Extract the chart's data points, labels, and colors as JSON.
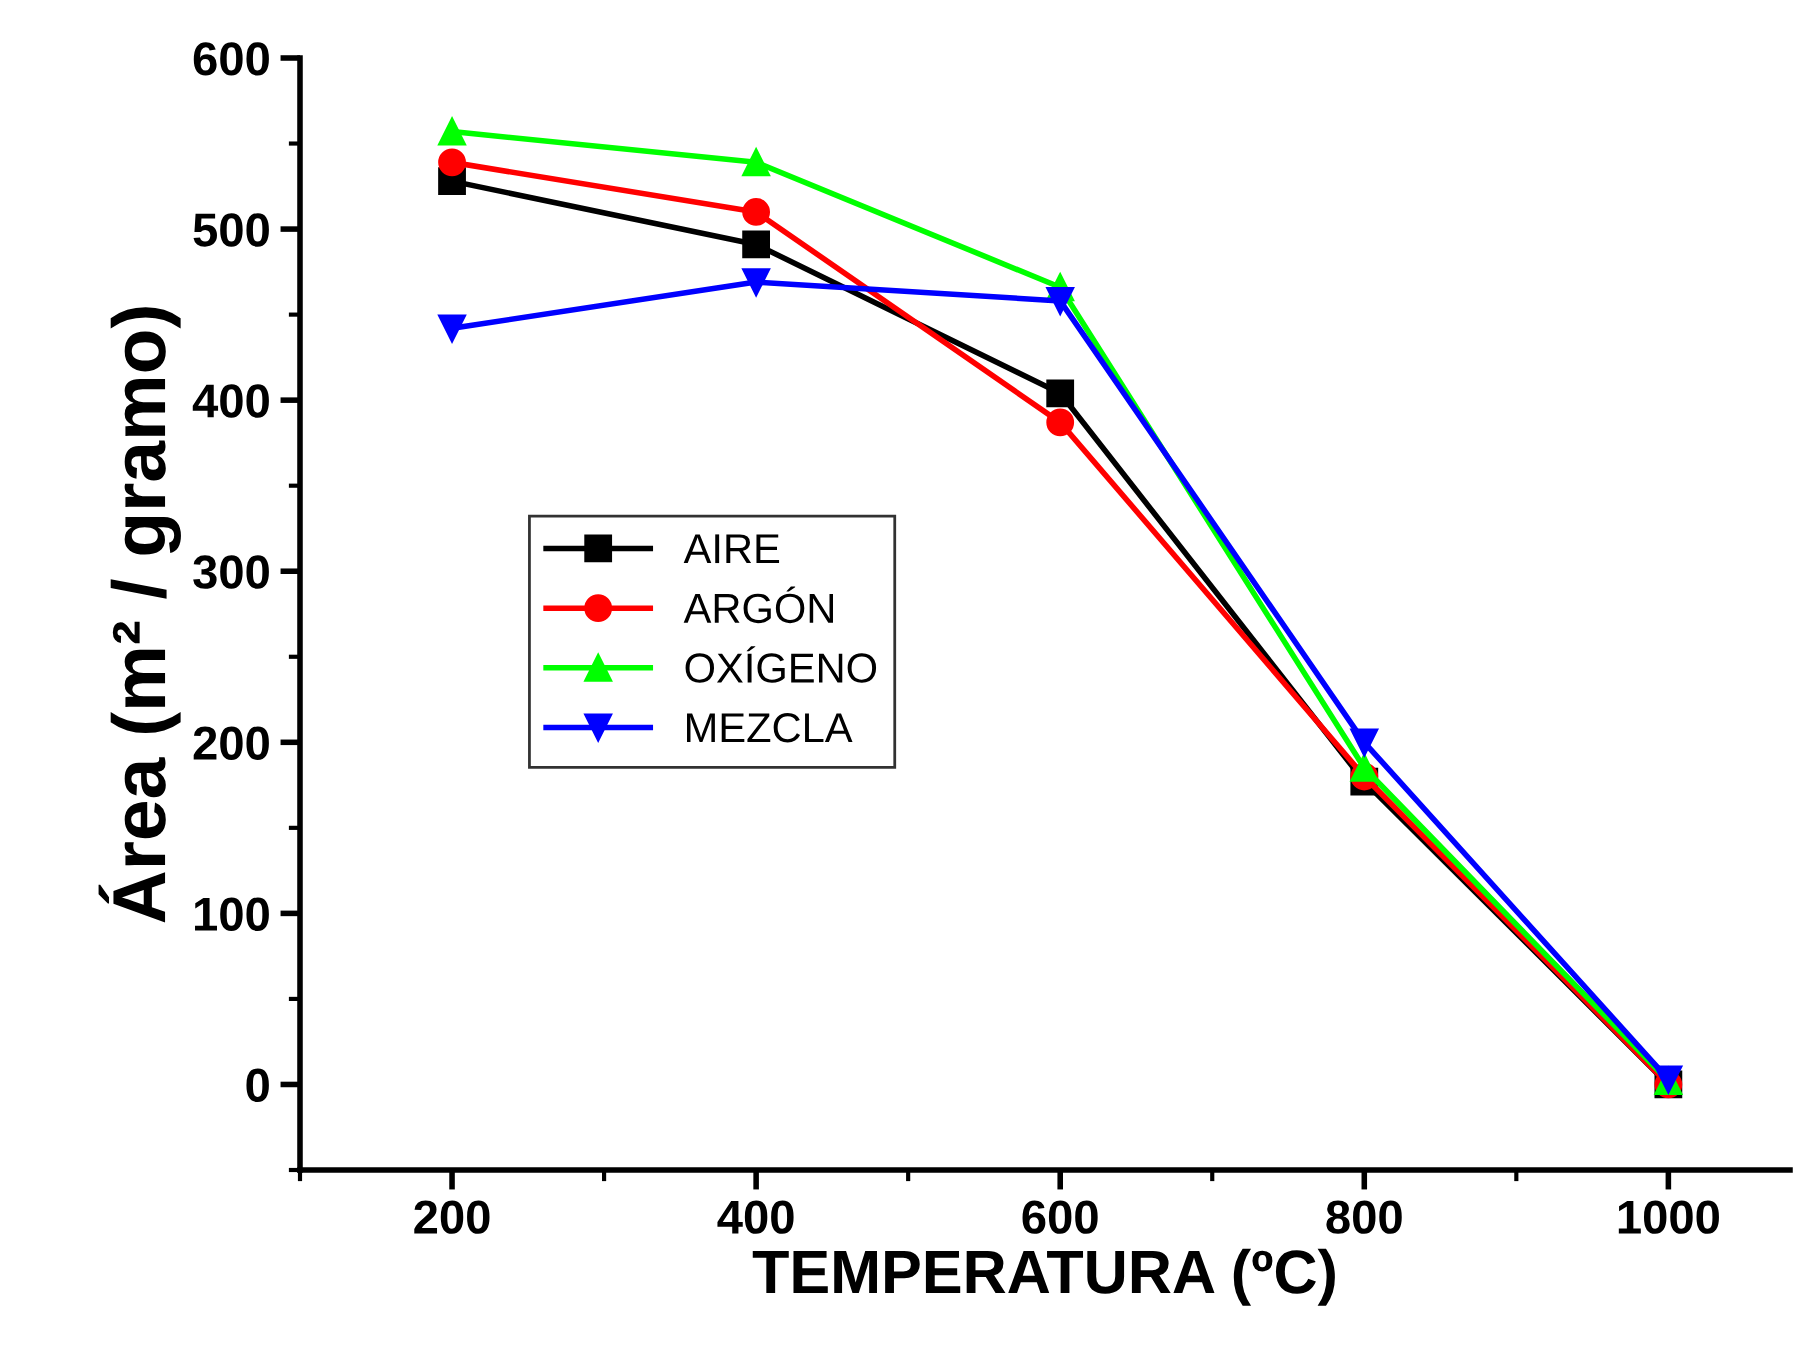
{
  "chart_data": {
    "type": "line",
    "xlabel": "TEMPERATURA (ºC)",
    "ylabel": "Área (m² / gramo)",
    "x": [
      200,
      400,
      600,
      800,
      1000
    ],
    "series": [
      {
        "name": "AIRE",
        "color": "#000000",
        "marker": "square",
        "values": [
          528,
          491,
          404,
          177,
          0
        ]
      },
      {
        "name": "ARGÓN",
        "color": "#ff0000",
        "marker": "circle",
        "values": [
          539,
          510,
          387,
          180,
          0
        ]
      },
      {
        "name": "OXÍGENO",
        "color": "#00ff00",
        "marker": "triangle",
        "values": [
          557,
          539,
          466,
          185,
          2
        ]
      },
      {
        "name": "MEZCLA",
        "color": "#0000ff",
        "marker": "triangle_down",
        "values": [
          442,
          469,
          458,
          200,
          3
        ]
      }
    ],
    "xlim": [
      100,
      1080
    ],
    "xticks": [
      200,
      400,
      600,
      800,
      1000
    ],
    "ylim": [
      -50,
      600
    ],
    "yticks": [
      0,
      100,
      200,
      300,
      400,
      500,
      600
    ],
    "grid": false,
    "legend": "center left",
    "line_style": "solid"
  }
}
